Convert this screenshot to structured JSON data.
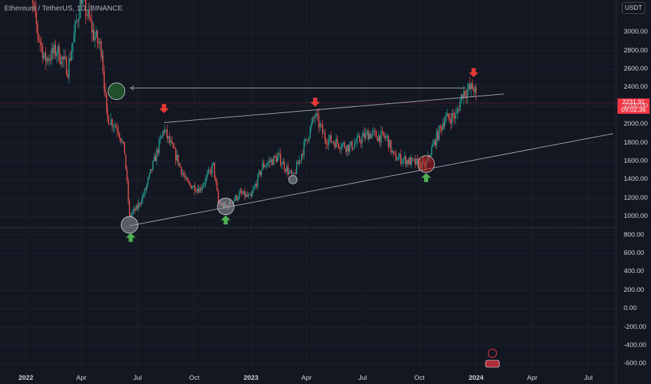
{
  "header": {
    "symbol": "Ethereum / TetherUS",
    "interval": "1D",
    "exchange": "BINANCE",
    "currency_button": "USDT"
  },
  "last_price": {
    "value": "2231.91",
    "countdown": "09:02:36"
  },
  "colors": {
    "background": "#131722",
    "up_candle": "#26a69a",
    "down_candle": "#ef5350",
    "arrow_down": "#e53935",
    "arrow_up": "#4caf50",
    "trend_line": "#b2b5be",
    "price_tag": "#f23645"
  },
  "chart_data": {
    "type": "candlestick",
    "instrument": "Ethereum / TetherUS",
    "interval": "1D",
    "exchange": "BINANCE",
    "y_ticks": [
      "3000.00",
      "2800.00",
      "2600.00",
      "2400.00",
      "2200.00",
      "2000.00",
      "1800.00",
      "1600.00",
      "1400.00",
      "1200.00",
      "1000.00",
      "800.00",
      "600.00",
      "400.00",
      "200.00",
      "0.00",
      "-200.00",
      "-400.00",
      "-600.00"
    ],
    "x_ticks": [
      {
        "label": "2022",
        "bold": true
      },
      {
        "label": "Apr",
        "bold": false
      },
      {
        "label": "Jul",
        "bold": false
      },
      {
        "label": "Oct",
        "bold": false
      },
      {
        "label": "2023",
        "bold": true
      },
      {
        "label": "Apr",
        "bold": false
      },
      {
        "label": "Jul",
        "bold": false
      },
      {
        "label": "Oct",
        "bold": false
      },
      {
        "label": "2024",
        "bold": true
      },
      {
        "label": "Apr",
        "bold": false
      },
      {
        "label": "Jul",
        "bold": false
      }
    ],
    "x_tick_dates": [
      "2022-01-01",
      "2022-04-01",
      "2022-07-01",
      "2022-10-01",
      "2023-01-01",
      "2023-04-01",
      "2023-07-01",
      "2023-10-01",
      "2024-01-01",
      "2024-04-01",
      "2024-07-01"
    ],
    "y_range": [
      -650,
      3350
    ],
    "x_range": [
      "2021-11-20",
      "2024-08-15"
    ],
    "series": [
      {
        "date": "2022-01-01",
        "close": 3700
      },
      {
        "date": "2022-01-20",
        "close": 3000
      },
      {
        "date": "2022-02-01",
        "close": 2700
      },
      {
        "date": "2022-02-20",
        "close": 2800
      },
      {
        "date": "2022-03-10",
        "close": 2600
      },
      {
        "date": "2022-04-01",
        "close": 3400
      },
      {
        "date": "2022-04-20",
        "close": 3000
      },
      {
        "date": "2022-05-05",
        "close": 2800
      },
      {
        "date": "2022-05-12",
        "close": 2100
      },
      {
        "date": "2022-05-31",
        "close": 1950
      },
      {
        "date": "2022-06-10",
        "close": 1700
      },
      {
        "date": "2022-06-18",
        "close": 1000
      },
      {
        "date": "2022-07-01",
        "close": 1100
      },
      {
        "date": "2022-07-15",
        "close": 1300
      },
      {
        "date": "2022-08-13",
        "close": 1950
      },
      {
        "date": "2022-09-05",
        "close": 1600
      },
      {
        "date": "2022-09-20",
        "close": 1350
      },
      {
        "date": "2022-10-10",
        "close": 1300
      },
      {
        "date": "2022-11-01",
        "close": 1550
      },
      {
        "date": "2022-11-09",
        "close": 1150
      },
      {
        "date": "2022-11-21",
        "close": 1100
      },
      {
        "date": "2022-12-15",
        "close": 1250
      },
      {
        "date": "2023-01-01",
        "close": 1200
      },
      {
        "date": "2023-01-20",
        "close": 1550
      },
      {
        "date": "2023-02-15",
        "close": 1650
      },
      {
        "date": "2023-03-10",
        "close": 1420
      },
      {
        "date": "2023-04-15",
        "close": 2100
      },
      {
        "date": "2023-05-01",
        "close": 1850
      },
      {
        "date": "2023-06-10",
        "close": 1750
      },
      {
        "date": "2023-07-10",
        "close": 1900
      },
      {
        "date": "2023-08-10",
        "close": 1850
      },
      {
        "date": "2023-08-20",
        "close": 1650
      },
      {
        "date": "2023-09-15",
        "close": 1600
      },
      {
        "date": "2023-10-12",
        "close": 1550
      },
      {
        "date": "2023-10-25",
        "close": 1800
      },
      {
        "date": "2023-11-10",
        "close": 2050
      },
      {
        "date": "2023-12-01",
        "close": 2100
      },
      {
        "date": "2023-12-10",
        "close": 2350
      },
      {
        "date": "2023-12-28",
        "close": 2400
      },
      {
        "date": "2024-01-03",
        "close": 2231.91
      }
    ],
    "annotations": {
      "trend_lines": [
        {
          "from": {
            "date": "2022-06-18",
            "value": 900
          },
          "to": {
            "date": "2024-08-10",
            "value": 1900
          }
        },
        {
          "from": {
            "date": "2022-08-13",
            "value": 2020
          },
          "to": {
            "date": "2024-02-15",
            "value": 2330
          }
        }
      ],
      "horizontal_arrow": {
        "from": {
          "date": "2023-12-15",
          "value": 2395
        },
        "to": {
          "date": "2022-05-28",
          "value": 2395
        }
      },
      "circles": [
        {
          "date": "2022-05-28",
          "value": 2360,
          "fill": "#2e7d32",
          "big": true
        },
        {
          "date": "2022-06-18",
          "value": 910,
          "fill": "#9598a1",
          "big": true
        },
        {
          "date": "2022-11-21",
          "value": 1110,
          "fill": "#9598a1",
          "big": true
        },
        {
          "date": "2023-03-10",
          "value": 1400,
          "fill": "#9598a1",
          "big": false
        },
        {
          "date": "2023-10-12",
          "value": 1570,
          "fill": "#b71c1c",
          "big": true
        }
      ],
      "down_arrows": [
        {
          "date": "2022-08-13",
          "value": 2160
        },
        {
          "date": "2023-04-15",
          "value": 2230
        },
        {
          "date": "2023-12-28",
          "value": 2550
        }
      ],
      "up_arrows": [
        {
          "date": "2022-06-20",
          "value": 770
        },
        {
          "date": "2022-11-21",
          "value": 960
        },
        {
          "date": "2023-10-12",
          "value": 1420
        }
      ]
    }
  }
}
